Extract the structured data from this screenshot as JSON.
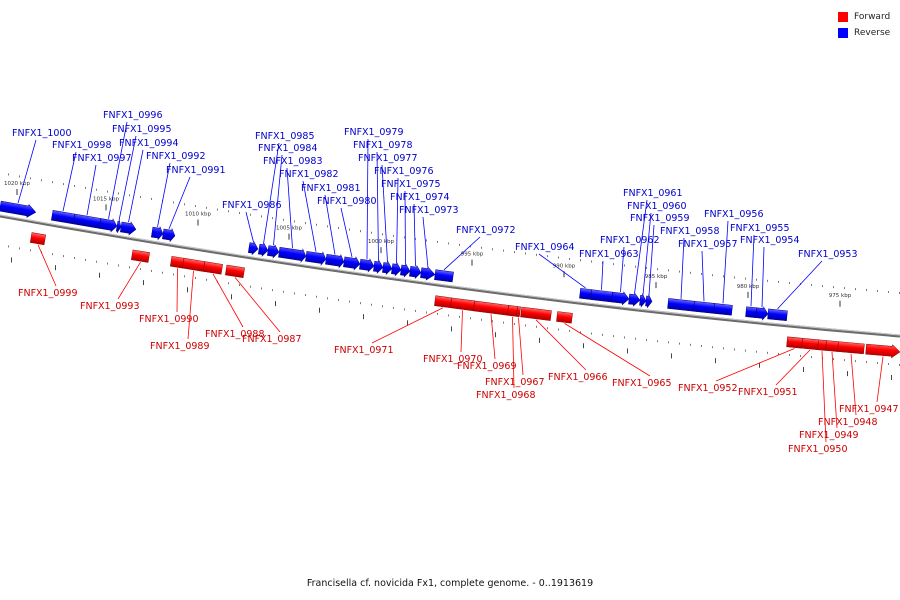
{
  "footer": {
    "caption": "Francisella cf. novicida Fx1, complete genome. - 0..1913619"
  },
  "legend": [
    {
      "label": "Forward",
      "color": "#ff0000"
    },
    {
      "label": "Reverse",
      "color": "#0000ff"
    }
  ],
  "colors": {
    "forward": "#ff0000",
    "reverse": "#0000ff",
    "forward_label": "#cc0000",
    "reverse_label": "#0000cc",
    "backbone": "#6b6b6b"
  },
  "ticks": [
    {
      "label": "1020 kbp"
    },
    {
      "label": "1015 kbp"
    },
    {
      "label": "1010 kbp"
    },
    {
      "label": "1005 kbp"
    },
    {
      "label": "1000 kbp"
    },
    {
      "label": "995 kbp"
    },
    {
      "label": "990 kbp"
    },
    {
      "label": "985 kbp"
    },
    {
      "label": "980 kbp"
    },
    {
      "label": "975 kbp"
    }
  ],
  "genes": [
    {
      "name": "FNFX1_1000",
      "strand": "reverse"
    },
    {
      "name": "FNFX1_0999",
      "strand": "forward"
    },
    {
      "name": "FNFX1_0998",
      "strand": "reverse"
    },
    {
      "name": "FNFX1_0997",
      "strand": "reverse"
    },
    {
      "name": "FNFX1_0996",
      "strand": "reverse"
    },
    {
      "name": "FNFX1_0995",
      "strand": "reverse"
    },
    {
      "name": "FNFX1_0994",
      "strand": "reverse"
    },
    {
      "name": "FNFX1_0993",
      "strand": "forward"
    },
    {
      "name": "FNFX1_0992",
      "strand": "reverse"
    },
    {
      "name": "FNFX1_0991",
      "strand": "reverse"
    },
    {
      "name": "FNFX1_0990",
      "strand": "forward"
    },
    {
      "name": "FNFX1_0989",
      "strand": "forward"
    },
    {
      "name": "FNFX1_0988",
      "strand": "forward"
    },
    {
      "name": "FNFX1_0987",
      "strand": "forward"
    },
    {
      "name": "FNFX1_0986",
      "strand": "reverse"
    },
    {
      "name": "FNFX1_0985",
      "strand": "reverse"
    },
    {
      "name": "FNFX1_0984",
      "strand": "reverse"
    },
    {
      "name": "FNFX1_0983",
      "strand": "reverse"
    },
    {
      "name": "FNFX1_0982",
      "strand": "reverse"
    },
    {
      "name": "FNFX1_0981",
      "strand": "reverse"
    },
    {
      "name": "FNFX1_0980",
      "strand": "reverse"
    },
    {
      "name": "FNFX1_0979",
      "strand": "reverse"
    },
    {
      "name": "FNFX1_0978",
      "strand": "reverse"
    },
    {
      "name": "FNFX1_0977",
      "strand": "reverse"
    },
    {
      "name": "FNFX1_0976",
      "strand": "reverse"
    },
    {
      "name": "FNFX1_0975",
      "strand": "reverse"
    },
    {
      "name": "FNFX1_0974",
      "strand": "reverse"
    },
    {
      "name": "FNFX1_0973",
      "strand": "reverse"
    },
    {
      "name": "FNFX1_0972",
      "strand": "reverse"
    },
    {
      "name": "FNFX1_0971",
      "strand": "forward"
    },
    {
      "name": "FNFX1_0970",
      "strand": "forward"
    },
    {
      "name": "FNFX1_0969",
      "strand": "forward"
    },
    {
      "name": "FNFX1_0968",
      "strand": "forward"
    },
    {
      "name": "FNFX1_0967",
      "strand": "forward"
    },
    {
      "name": "FNFX1_0966",
      "strand": "forward"
    },
    {
      "name": "FNFX1_0965",
      "strand": "forward"
    },
    {
      "name": "FNFX1_0964",
      "strand": "reverse"
    },
    {
      "name": "FNFX1_0963",
      "strand": "reverse"
    },
    {
      "name": "FNFX1_0962",
      "strand": "reverse"
    },
    {
      "name": "FNFX1_0961",
      "strand": "reverse"
    },
    {
      "name": "FNFX1_0960",
      "strand": "reverse"
    },
    {
      "name": "FNFX1_0959",
      "strand": "reverse"
    },
    {
      "name": "FNFX1_0958",
      "strand": "reverse"
    },
    {
      "name": "FNFX1_0957",
      "strand": "reverse"
    },
    {
      "name": "FNFX1_0956",
      "strand": "reverse"
    },
    {
      "name": "FNFX1_0955",
      "strand": "reverse"
    },
    {
      "name": "FNFX1_0954",
      "strand": "reverse"
    },
    {
      "name": "FNFX1_0953",
      "strand": "reverse"
    },
    {
      "name": "FNFX1_0952",
      "strand": "forward"
    },
    {
      "name": "FNFX1_0951",
      "strand": "forward"
    },
    {
      "name": "FNFX1_0950",
      "strand": "forward"
    },
    {
      "name": "FNFX1_0949",
      "strand": "forward"
    },
    {
      "name": "FNFX1_0948",
      "strand": "forward"
    },
    {
      "name": "FNFX1_0947",
      "strand": "forward"
    }
  ]
}
